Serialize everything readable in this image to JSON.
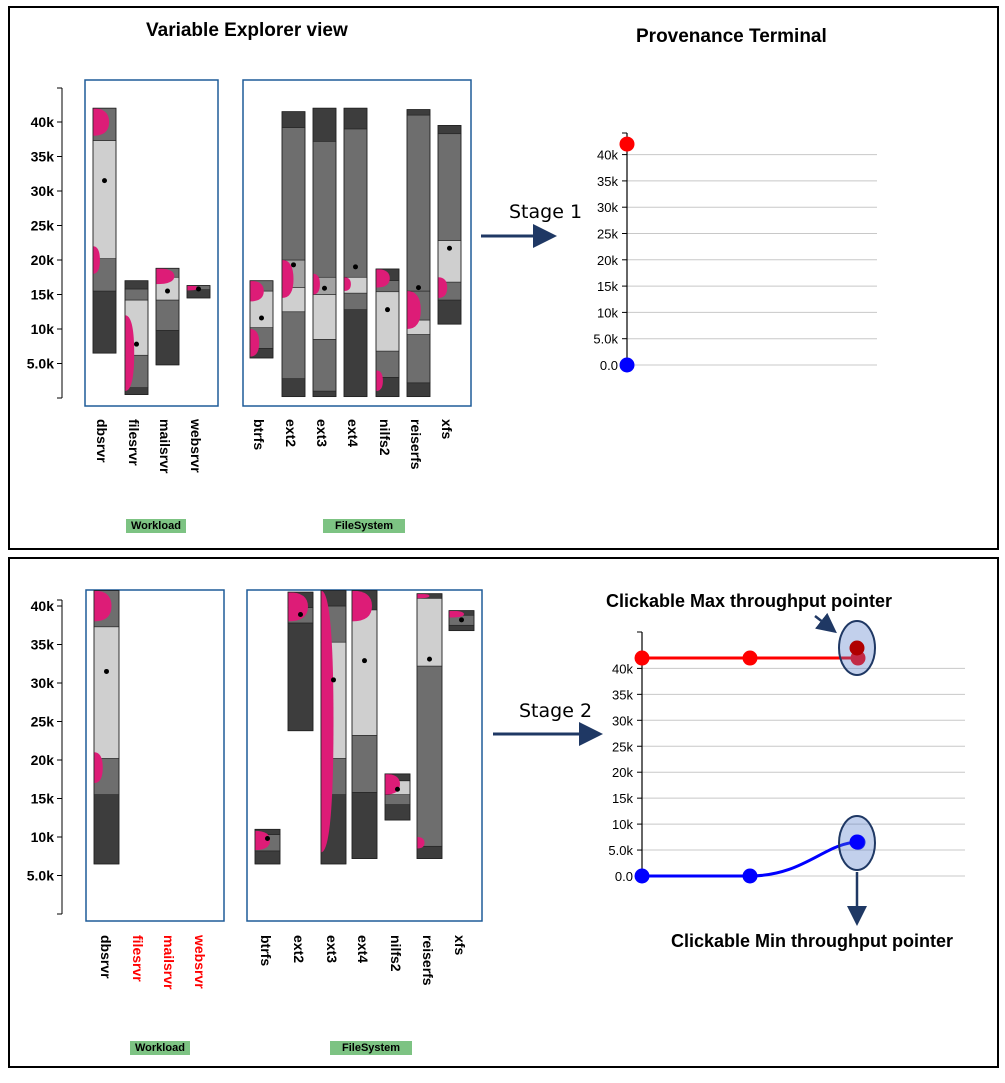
{
  "stage1": {
    "title_left": "Variable Explorer view",
    "title_right": "Provenance Terminal",
    "arrow_label": "Stage 1",
    "yticks": [
      "40k",
      "35k",
      "30k",
      "25k",
      "20k",
      "15k",
      "10k",
      "5.0k"
    ],
    "workload_group": "Workload",
    "filesystem_group": "FileSystem",
    "workload_labels": [
      "dbsrvr",
      "filesrvr",
      "mailsrvr",
      "websrvr"
    ],
    "filesystem_labels": [
      "btrfs",
      "ext2",
      "ext3",
      "ext4",
      "nilfs2",
      "reiserfs",
      "xfs"
    ],
    "terminal_yticks": [
      "40k",
      "35k",
      "30k",
      "25k",
      "20k",
      "15k",
      "10k",
      "5.0k",
      "0.0"
    ],
    "terminal_points": {
      "max": [
        42000
      ],
      "min": [
        0
      ]
    }
  },
  "stage2": {
    "arrow_label": "Stage 2",
    "yticks": [
      "40k",
      "35k",
      "30k",
      "25k",
      "20k",
      "15k",
      "10k",
      "5.0k"
    ],
    "workload_group": "Workload",
    "filesystem_group": "FileSystem",
    "workload_labels": [
      "dbsrvr",
      "filesrvr",
      "mailsrvr",
      "websrvr"
    ],
    "workload_label_colors": [
      "#000000",
      "#ff0000",
      "#ff0000",
      "#ff0000"
    ],
    "filesystem_labels": [
      "btrfs",
      "ext2",
      "ext3",
      "ext4",
      "nilfs2",
      "reiserfs",
      "xfs"
    ],
    "terminal_yticks": [
      "40k",
      "35k",
      "30k",
      "25k",
      "20k",
      "15k",
      "10k",
      "5.0k",
      "0.0"
    ],
    "terminal_points": {
      "max": [
        42000,
        42000,
        42000
      ],
      "min": [
        0,
        0,
        6500
      ]
    },
    "max_pointer_label": "Clickable Max throughput pointer",
    "min_pointer_label": "Clickable Min throughput pointer"
  },
  "colors": {
    "max_series": "#ff0000",
    "min_series": "#0000ff",
    "density": "#dd1c77",
    "panel_border": "#1f5c99",
    "arrow": "#1f3864",
    "group_tag": "#7dc383"
  }
}
